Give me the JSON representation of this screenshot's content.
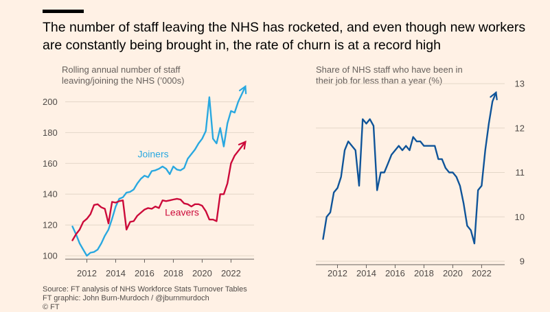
{
  "title": "The number of staff leaving the NHS has rocketed, and even though new workers are constantly being brought in, the rate of churn is at a record high",
  "footer": {
    "source": "Source: FT analysis of NHS Workforce Stats Turnover Tables",
    "credit": "FT graphic: John Burn-Murdoch / @jburnmurdoch",
    "copyright": "© FT"
  },
  "colors": {
    "joiners": "#29a8e0",
    "leavers": "#cc0a3a",
    "share": "#0f5499"
  },
  "chart_data": [
    {
      "type": "line",
      "subtitle_lines": [
        "Rolling annual number of staff",
        "leaving/joining the NHS (’000s)"
      ],
      "xlim": [
        2010.5,
        2023.6
      ],
      "ylim": [
        100,
        210
      ],
      "xticks": [
        2012,
        2014,
        2016,
        2018,
        2020,
        2022
      ],
      "yticks": [
        100,
        120,
        140,
        160,
        180,
        200
      ],
      "grid": true,
      "series": [
        {
          "name": "Joiners",
          "x": [
            2011.0,
            2011.25,
            2011.5,
            2011.75,
            2012.0,
            2012.25,
            2012.5,
            2012.75,
            2013.0,
            2013.25,
            2013.5,
            2013.75,
            2014.0,
            2014.25,
            2014.5,
            2014.75,
            2015.0,
            2015.25,
            2015.5,
            2015.75,
            2016.0,
            2016.25,
            2016.5,
            2016.75,
            2017.0,
            2017.25,
            2017.5,
            2017.75,
            2018.0,
            2018.25,
            2018.5,
            2018.75,
            2019.0,
            2019.25,
            2019.5,
            2019.75,
            2020.0,
            2020.25,
            2020.5,
            2020.75,
            2021.0,
            2021.25,
            2021.5,
            2021.75,
            2022.0,
            2022.25,
            2022.5,
            2022.75,
            2023.0
          ],
          "values": [
            119,
            114,
            108,
            104,
            100,
            102,
            102.5,
            104,
            108,
            113,
            117,
            124,
            132,
            137,
            138,
            141,
            141.5,
            143,
            147,
            150,
            152,
            151,
            155,
            155.5,
            156.5,
            158,
            156.5,
            153,
            158,
            156,
            155.5,
            157,
            163,
            166,
            169,
            173,
            176,
            181,
            203,
            176,
            173,
            183,
            171,
            186,
            194,
            193,
            200,
            205,
            210
          ]
        },
        {
          "name": "Leavers",
          "x": [
            2011.0,
            2011.25,
            2011.5,
            2011.75,
            2012.0,
            2012.25,
            2012.5,
            2012.75,
            2013.0,
            2013.25,
            2013.5,
            2013.75,
            2014.0,
            2014.25,
            2014.5,
            2014.75,
            2015.0,
            2015.25,
            2015.5,
            2015.75,
            2016.0,
            2016.25,
            2016.5,
            2016.75,
            2017.0,
            2017.25,
            2017.5,
            2017.75,
            2018.0,
            2018.25,
            2018.5,
            2018.75,
            2019.0,
            2019.25,
            2019.5,
            2019.75,
            2020.0,
            2020.25,
            2020.5,
            2020.75,
            2021.0,
            2021.25,
            2021.5,
            2021.75,
            2022.0,
            2022.25,
            2022.5,
            2022.75,
            2023.0
          ],
          "values": [
            110,
            114,
            117,
            122,
            124,
            127,
            133,
            133.5,
            131.5,
            130.5,
            121,
            135,
            134.5,
            135.5,
            136,
            117,
            122,
            122.5,
            126,
            128,
            130,
            131,
            130.5,
            132,
            131,
            136,
            135.5,
            136,
            136.5,
            137,
            136.5,
            134,
            133.5,
            132,
            133.5,
            133.5,
            132.5,
            129,
            123.5,
            123.5,
            122.5,
            140,
            140,
            147,
            160,
            165,
            168,
            171,
            174
          ]
        }
      ],
      "annotations": [
        {
          "text": "Joiners",
          "series": "Joiners",
          "x": 2016.6,
          "y": 164
        },
        {
          "text": "Leavers",
          "series": "Leavers",
          "x": 2018.6,
          "y": 126
        }
      ]
    },
    {
      "type": "line",
      "subtitle_lines": [
        "Share of NHS staff who have been in",
        "their job for less than a year (%)"
      ],
      "xlim": [
        2010.5,
        2023.6
      ],
      "ylim": [
        9,
        13
      ],
      "xticks": [
        2012,
        2014,
        2016,
        2018,
        2020,
        2022
      ],
      "yticks": [
        9,
        10,
        11,
        12,
        13
      ],
      "grid": true,
      "series": [
        {
          "name": "Share under a year",
          "x": [
            2011.0,
            2011.25,
            2011.5,
            2011.75,
            2012.0,
            2012.25,
            2012.5,
            2012.75,
            2013.0,
            2013.25,
            2013.5,
            2013.75,
            2014.0,
            2014.25,
            2014.5,
            2014.75,
            2015.0,
            2015.25,
            2015.5,
            2015.75,
            2016.0,
            2016.25,
            2016.5,
            2016.75,
            2017.0,
            2017.25,
            2017.5,
            2017.75,
            2018.0,
            2018.25,
            2018.5,
            2018.75,
            2019.0,
            2019.25,
            2019.5,
            2019.75,
            2020.0,
            2020.25,
            2020.5,
            2020.75,
            2021.0,
            2021.25,
            2021.5,
            2021.75,
            2022.0,
            2022.25,
            2022.5,
            2022.75,
            2023.0
          ],
          "values": [
            9.5,
            10.0,
            10.1,
            10.55,
            10.65,
            10.9,
            11.5,
            11.7,
            11.6,
            11.5,
            10.7,
            12.2,
            12.1,
            12.2,
            12.05,
            10.6,
            11.0,
            11.0,
            11.2,
            11.4,
            11.5,
            11.6,
            11.5,
            11.6,
            11.5,
            11.8,
            11.7,
            11.7,
            11.6,
            11.6,
            11.6,
            11.6,
            11.3,
            11.3,
            11.1,
            11.0,
            11.0,
            10.9,
            10.7,
            10.3,
            9.8,
            9.7,
            9.4,
            10.6,
            10.7,
            11.5,
            12.1,
            12.6,
            12.8
          ]
        }
      ]
    }
  ]
}
